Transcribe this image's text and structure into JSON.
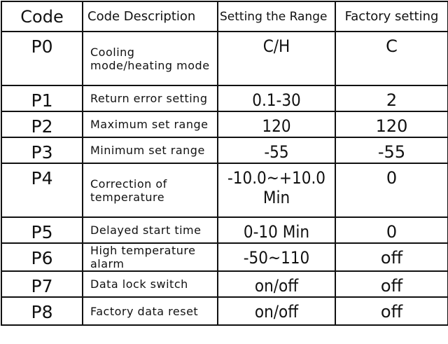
{
  "table": {
    "header": [
      "Code",
      "Code Description",
      "Setting the Range",
      "Factory setting"
    ],
    "rows": [
      [
        "P0",
        "Cooling mode/heating mode",
        "C/H",
        "C"
      ],
      [
        "P1",
        "Return error setting",
        "0.1-30",
        "2"
      ],
      [
        "P2",
        "Maximum set range",
        "120",
        "120"
      ],
      [
        "P3",
        "Minimum set range",
        "-55",
        "-55"
      ],
      [
        "P4",
        "Correction of temperature",
        "-10.0~+10.0 Min",
        "0"
      ],
      [
        "P5",
        "Delayed start time",
        "0-10 Min",
        "0"
      ],
      [
        "P6",
        "High temperature alarm",
        "-50~110",
        "off"
      ],
      [
        "P7",
        "Data lock switch",
        "on/off",
        "off"
      ],
      [
        "P8",
        "Factory data reset",
        "on/off",
        "off"
      ]
    ]
  }
}
